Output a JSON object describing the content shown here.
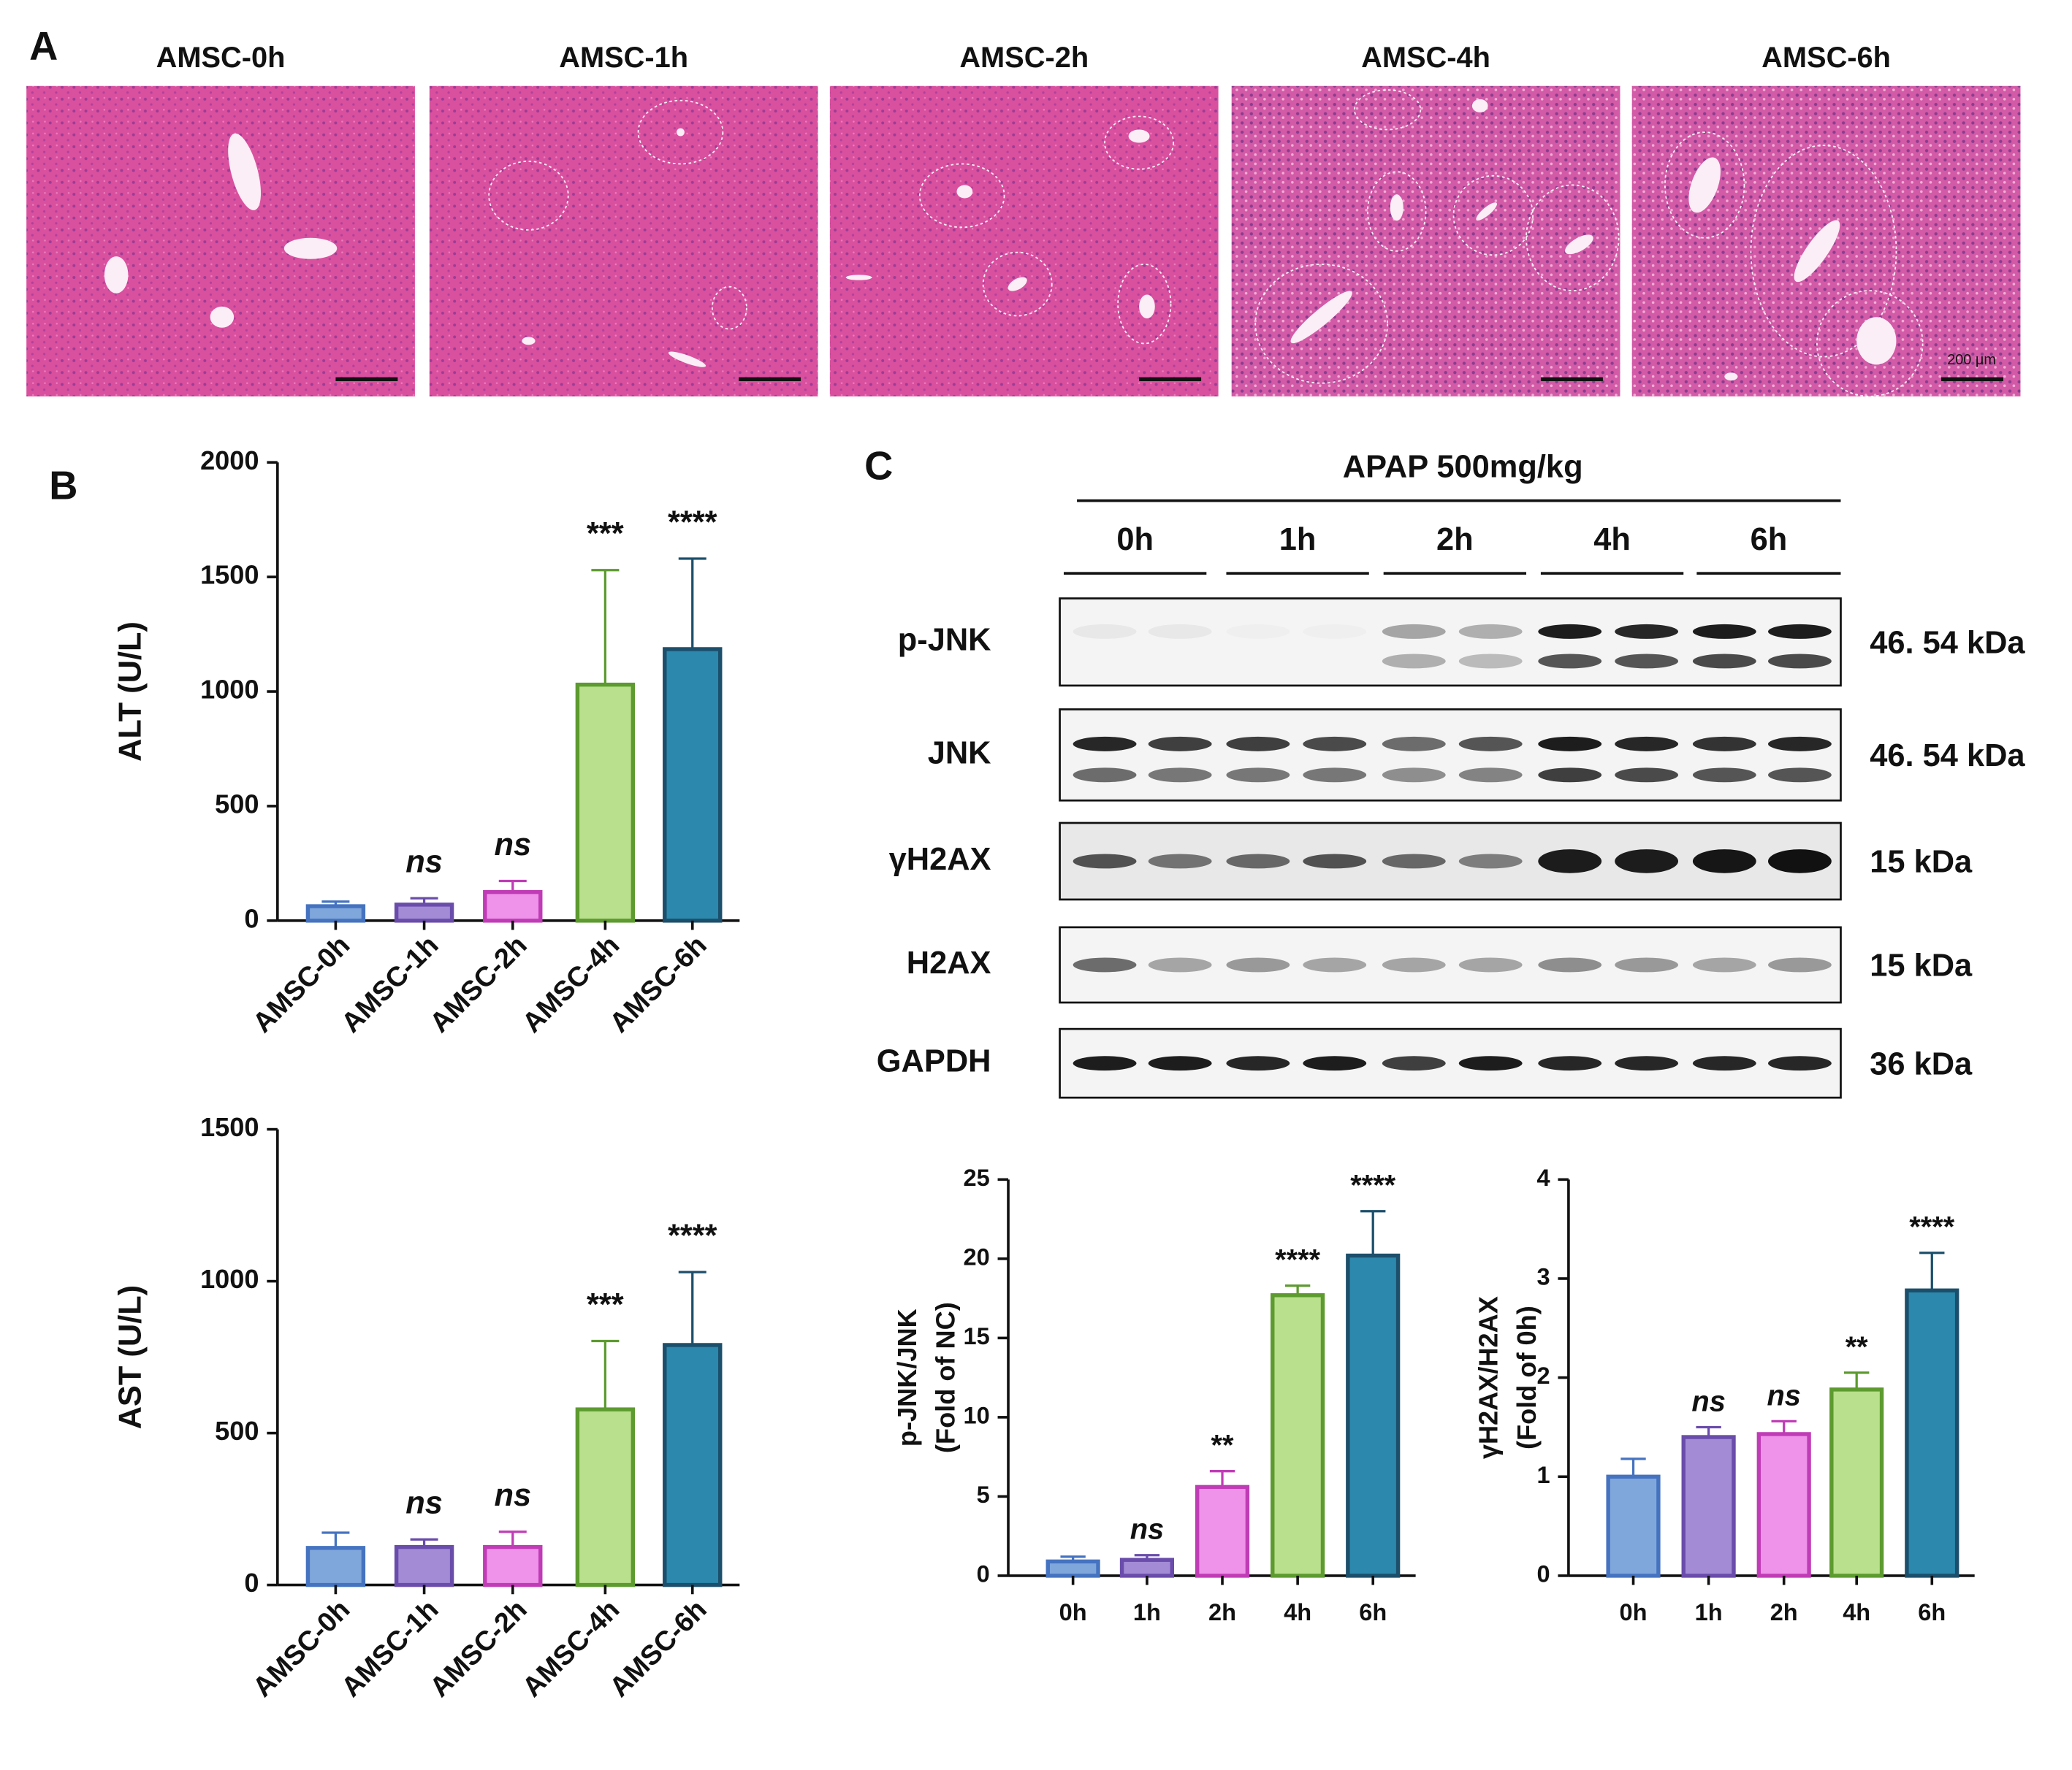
{
  "panel_a": {
    "label": "A",
    "titles": [
      "AMSC-0h",
      "AMSC-1h",
      "AMSC-2h",
      "AMSC-4h",
      "AMSC-6h"
    ],
    "scale_bar": "200 μm"
  },
  "panel_b": {
    "label": "B"
  },
  "panel_c": {
    "label": "C",
    "treatment": "APAP 500mg/kg",
    "timepoints": [
      "0h",
      "1h",
      "2h",
      "4h",
      "6h"
    ],
    "blots": [
      {
        "protein": "p-JNK",
        "size": "46. 54 kDa"
      },
      {
        "protein": "JNK",
        "size": "46. 54 kDa"
      },
      {
        "protein": "γH2AX",
        "size": "15 kDa"
      },
      {
        "protein": "H2AX",
        "size": "15 kDa"
      },
      {
        "protein": "GAPDH",
        "size": "36 kDa"
      }
    ]
  },
  "chart_data": [
    {
      "type": "bar",
      "ylabel": [
        "ALT (U/L)"
      ],
      "categories": [
        "AMSC-0h",
        "AMSC-1h",
        "AMSC-2h",
        "AMSC-4h",
        "AMSC-6h"
      ],
      "values": [
        63,
        70,
        125,
        1030,
        1185
      ],
      "errors": [
        20,
        28,
        48,
        500,
        395
      ],
      "significance": [
        null,
        "ns",
        "ns",
        "***",
        "****"
      ],
      "colors": [
        "#80a7dc",
        "#a48bd6",
        "#ef93ea",
        "#b9e08c",
        "#2c88ad"
      ],
      "edge_colors": [
        "#4573c0",
        "#6a4cab",
        "#c03cb6",
        "#5d9a2f",
        "#1c4f6b"
      ],
      "ylim": [
        0,
        2000
      ],
      "yticks": [
        0,
        500,
        1000,
        1500,
        2000
      ]
    },
    {
      "type": "bar",
      "ylabel": [
        "AST (U/L)"
      ],
      "categories": [
        "AMSC-0h",
        "AMSC-1h",
        "AMSC-2h",
        "AMSC-4h",
        "AMSC-6h"
      ],
      "values": [
        122,
        125,
        125,
        578,
        790
      ],
      "errors": [
        50,
        25,
        50,
        225,
        240
      ],
      "significance": [
        null,
        "ns",
        "ns",
        "***",
        "****"
      ],
      "colors": [
        "#80a7dc",
        "#a48bd6",
        "#ef93ea",
        "#b9e08c",
        "#2c88ad"
      ],
      "edge_colors": [
        "#4573c0",
        "#6a4cab",
        "#c03cb6",
        "#5d9a2f",
        "#1c4f6b"
      ],
      "ylim": [
        0,
        1500
      ],
      "yticks": [
        0,
        500,
        1000,
        1500
      ]
    },
    {
      "type": "bar",
      "ylabel": [
        "p-JNK/JNK",
        "(Fold of NC)"
      ],
      "categories": [
        "0h",
        "1h",
        "2h",
        "4h",
        "6h"
      ],
      "values": [
        0.9,
        1.0,
        5.6,
        17.7,
        20.2
      ],
      "errors": [
        0.3,
        0.3,
        1.0,
        0.6,
        2.8
      ],
      "significance": [
        null,
        "ns",
        "**",
        "****",
        "****"
      ],
      "colors": [
        "#80a7dc",
        "#a48bd6",
        "#ef93ea",
        "#b9e08c",
        "#2c88ad"
      ],
      "edge_colors": [
        "#4573c0",
        "#6a4cab",
        "#c03cb6",
        "#5d9a2f",
        "#1c4f6b"
      ],
      "ylim": [
        0,
        25
      ],
      "yticks": [
        0,
        5,
        10,
        15,
        20,
        25
      ]
    },
    {
      "type": "bar",
      "ylabel": [
        "γH2AX/H2AX",
        "(Fold of 0h)"
      ],
      "categories": [
        "0h",
        "1h",
        "2h",
        "4h",
        "6h"
      ],
      "values": [
        1.0,
        1.4,
        1.43,
        1.88,
        2.88
      ],
      "errors": [
        0.18,
        0.1,
        0.13,
        0.17,
        0.38
      ],
      "significance": [
        null,
        "ns",
        "ns",
        "**",
        "****"
      ],
      "colors": [
        "#80a7dc",
        "#a48bd6",
        "#ef93ea",
        "#b9e08c",
        "#2c88ad"
      ],
      "edge_colors": [
        "#4573c0",
        "#6a4cab",
        "#c03cb6",
        "#5d9a2f",
        "#1c4f6b"
      ],
      "ylim": [
        0,
        4
      ],
      "yticks": [
        0,
        1,
        2,
        3,
        4
      ]
    }
  ]
}
